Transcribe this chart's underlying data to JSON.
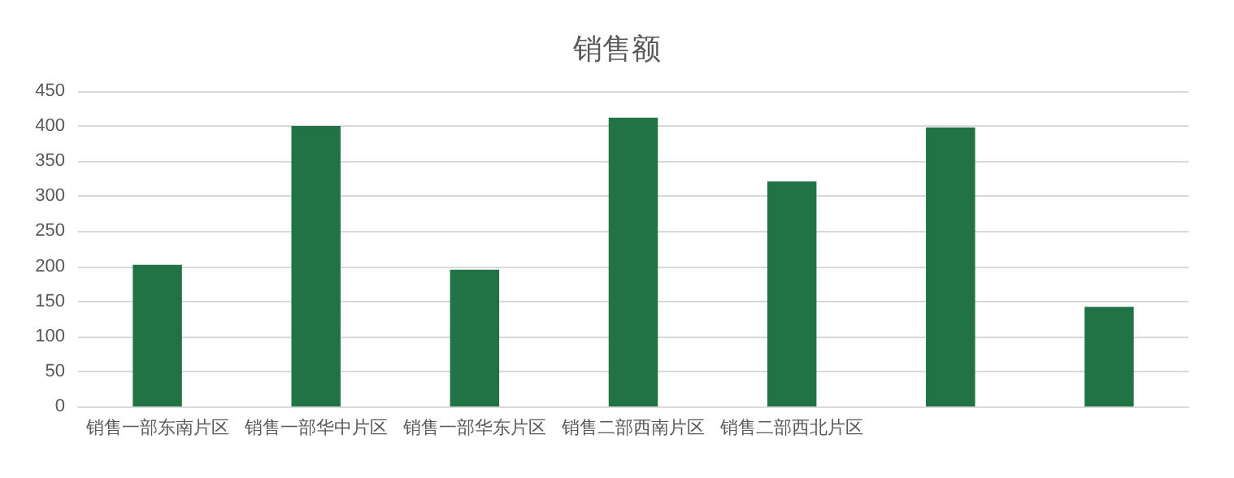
{
  "chart_data": {
    "type": "bar",
    "title": "销售额",
    "categories": [
      "销售一部东南片区",
      "销售一部华中片区",
      "销售一部华东片区",
      "销售二部西南片区",
      "销售二部西北片区",
      null,
      null
    ],
    "values": [
      202,
      400,
      195,
      412,
      321,
      398,
      142
    ],
    "color": "#217346",
    "ylim": [
      0,
      450
    ],
    "yticks": [
      0,
      50,
      100,
      150,
      200,
      250,
      300,
      350,
      400,
      450
    ],
    "grid": "y"
  }
}
